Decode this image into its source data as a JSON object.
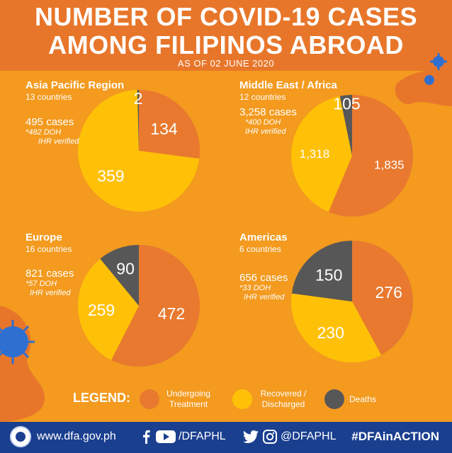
{
  "header": {
    "title_line1": "NUMBER OF COVID-19 CASES",
    "title_line2": "AMONG FILIPINOS ABROAD",
    "as_of": "AS OF 02 JUNE 2020"
  },
  "colors": {
    "undergoing": "#e8792f",
    "recovered": "#ffc107",
    "deaths": "#575757",
    "background": "#f39a1f",
    "header": "#e8762a",
    "footer": "#1b3f8f"
  },
  "regions": {
    "asia": {
      "name": "Asia Pacific Region",
      "countries": "13 countries",
      "cases": "495 cases",
      "note1": "*482 DOH",
      "note2": "IHR verified"
    },
    "mea": {
      "name": "Middle East / Africa",
      "countries": "12 countries",
      "cases": "3,258 cases",
      "note1": "*400 DOH",
      "note2": "IHR verified"
    },
    "europe": {
      "name": "Europe",
      "countries": "16 countries",
      "cases": "821 cases",
      "note1": "*57 DOH",
      "note2": "IHR verified"
    },
    "americas": {
      "name": "Americas",
      "countries": "6 countries",
      "cases": "656 cases",
      "note1": "*33 DOH",
      "note2": "IHR verified"
    }
  },
  "chart_data": [
    {
      "type": "pie",
      "title": "Asia Pacific Region",
      "labels": [
        "Undergoing Treatment",
        "Recovered / Discharged",
        "Deaths"
      ],
      "values": [
        134,
        359,
        2
      ],
      "value_labels": [
        "134",
        "359",
        "2"
      ]
    },
    {
      "type": "pie",
      "title": "Middle East / Africa",
      "labels": [
        "Undergoing Treatment",
        "Recovered / Discharged",
        "Deaths"
      ],
      "values": [
        1835,
        1318,
        105
      ],
      "value_labels": [
        "1,835",
        "1,318",
        "105"
      ]
    },
    {
      "type": "pie",
      "title": "Europe",
      "labels": [
        "Undergoing Treatment",
        "Recovered / Discharged",
        "Deaths"
      ],
      "values": [
        472,
        259,
        90
      ],
      "value_labels": [
        "472",
        "259",
        "90"
      ]
    },
    {
      "type": "pie",
      "title": "Americas",
      "labels": [
        "Undergoing Treatment",
        "Recovered / Discharged",
        "Deaths"
      ],
      "values": [
        276,
        230,
        150
      ],
      "value_labels": [
        "276",
        "230",
        "150"
      ]
    }
  ],
  "legend": {
    "title": "LEGEND:",
    "undergoing_line1": "Undergoing",
    "undergoing_line2": "Treatment",
    "recovered_line1": "Recovered /",
    "recovered_line2": "Discharged",
    "deaths": "Deaths"
  },
  "footer": {
    "website": "www.dfa.gov.ph",
    "handle1": "/DFAPHL",
    "handle2": "@DFAPHL",
    "hashtag": "#DFAinACTION"
  }
}
